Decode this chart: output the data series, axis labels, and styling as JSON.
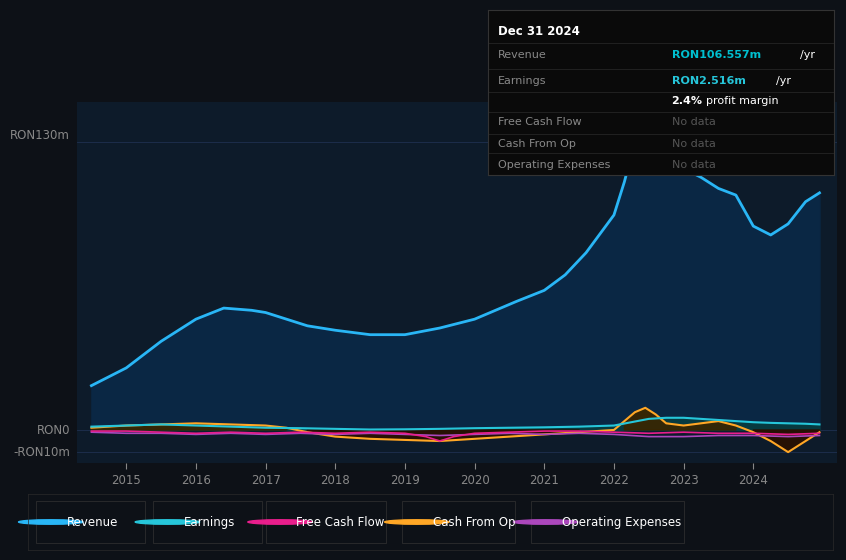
{
  "bg_color": "#0d1117",
  "plot_bg_color": "#0d1b2a",
  "y_label_top": "RON130m",
  "y_label_zero": "RON0",
  "y_label_neg": "-RON10m",
  "x_ticks": [
    2015,
    2016,
    2017,
    2018,
    2019,
    2020,
    2021,
    2022,
    2023,
    2024
  ],
  "ylim": [
    -15,
    148
  ],
  "revenue": {
    "x": [
      2014.5,
      2015.0,
      2015.5,
      2016.0,
      2016.4,
      2016.8,
      2017.0,
      2017.3,
      2017.6,
      2018.0,
      2018.5,
      2019.0,
      2019.5,
      2020.0,
      2020.3,
      2020.6,
      2021.0,
      2021.3,
      2021.6,
      2022.0,
      2022.15,
      2022.3,
      2022.45,
      2022.6,
      2022.75,
      2023.0,
      2023.25,
      2023.5,
      2023.75,
      2024.0,
      2024.25,
      2024.5,
      2024.75,
      2024.95
    ],
    "y": [
      20,
      28,
      40,
      50,
      55,
      54,
      53,
      50,
      47,
      45,
      43,
      43,
      46,
      50,
      54,
      58,
      63,
      70,
      80,
      97,
      112,
      130,
      138,
      133,
      126,
      118,
      114,
      109,
      106,
      92,
      88,
      93,
      103,
      107
    ],
    "color": "#29b6f6",
    "fill_color": "#0a2744",
    "linewidth": 2.0
  },
  "earnings": {
    "x": [
      2014.5,
      2015.0,
      2015.5,
      2016.0,
      2016.5,
      2017.0,
      2017.5,
      2018.0,
      2018.5,
      2019.0,
      2019.5,
      2020.0,
      2020.5,
      2021.0,
      2021.5,
      2022.0,
      2022.25,
      2022.5,
      2022.75,
      2023.0,
      2023.25,
      2023.5,
      2023.75,
      2024.0,
      2024.25,
      2024.5,
      2024.75,
      2024.95
    ],
    "y": [
      1.5,
      2.0,
      2.5,
      2.0,
      1.5,
      1.0,
      0.8,
      0.5,
      0.2,
      0.3,
      0.5,
      0.8,
      1.0,
      1.2,
      1.5,
      2.0,
      3.5,
      5.0,
      5.5,
      5.5,
      5.0,
      4.5,
      4.0,
      3.5,
      3.2,
      3.0,
      2.8,
      2.5
    ],
    "color": "#26c6da",
    "fill_color": "#073d40",
    "linewidth": 1.5
  },
  "free_cash_flow": {
    "x": [
      2014.5,
      2015.0,
      2015.5,
      2016.0,
      2016.5,
      2017.0,
      2017.5,
      2018.0,
      2018.5,
      2019.0,
      2019.3,
      2019.5,
      2019.7,
      2020.0,
      2020.5,
      2021.0,
      2021.5,
      2022.0,
      2022.5,
      2023.0,
      2023.5,
      2024.0,
      2024.5,
      2024.95
    ],
    "y": [
      -0.5,
      -0.5,
      -1.0,
      -1.5,
      -1.0,
      -1.5,
      -1.0,
      -1.5,
      -1.0,
      -1.5,
      -3.0,
      -5.0,
      -3.0,
      -1.5,
      -1.0,
      -0.5,
      -0.5,
      -1.0,
      -1.5,
      -1.0,
      -1.5,
      -1.5,
      -2.0,
      -1.5
    ],
    "color": "#e91e8c",
    "linewidth": 1.2
  },
  "cash_from_op": {
    "x": [
      2014.5,
      2015.0,
      2015.5,
      2016.0,
      2016.5,
      2017.0,
      2017.3,
      2017.6,
      2018.0,
      2018.5,
      2019.0,
      2019.5,
      2020.0,
      2020.5,
      2021.0,
      2021.5,
      2022.0,
      2022.15,
      2022.3,
      2022.45,
      2022.6,
      2022.75,
      2023.0,
      2023.25,
      2023.5,
      2023.75,
      2024.0,
      2024.25,
      2024.5,
      2024.75,
      2024.95
    ],
    "y": [
      1.0,
      2.0,
      2.5,
      3.0,
      2.5,
      2.0,
      1.0,
      -1.0,
      -3.0,
      -4.0,
      -4.5,
      -5.0,
      -4.0,
      -3.0,
      -2.0,
      -1.0,
      0.0,
      4.0,
      8.0,
      10.0,
      7.0,
      3.0,
      2.0,
      3.0,
      4.0,
      2.0,
      -1.0,
      -5.0,
      -10.0,
      -5.0,
      -1.0
    ],
    "color": "#ffa726",
    "fill_color": "#3d2000",
    "linewidth": 1.5
  },
  "op_expenses": {
    "x": [
      2014.5,
      2015.0,
      2015.5,
      2016.0,
      2016.5,
      2017.0,
      2017.5,
      2018.0,
      2018.5,
      2019.0,
      2019.5,
      2020.0,
      2020.5,
      2021.0,
      2021.5,
      2022.0,
      2022.5,
      2023.0,
      2023.5,
      2024.0,
      2024.5,
      2024.95
    ],
    "y": [
      -1.0,
      -1.5,
      -1.5,
      -2.0,
      -1.5,
      -2.0,
      -1.5,
      -2.0,
      -1.5,
      -2.0,
      -2.5,
      -2.0,
      -1.5,
      -2.0,
      -1.5,
      -2.0,
      -3.0,
      -3.0,
      -2.5,
      -2.5,
      -3.0,
      -2.5
    ],
    "color": "#ab47bc",
    "linewidth": 1.2
  },
  "legend": [
    {
      "label": "Revenue",
      "color": "#29b6f6"
    },
    {
      "label": "Earnings",
      "color": "#26c6da"
    },
    {
      "label": "Free Cash Flow",
      "color": "#e91e8c"
    },
    {
      "label": "Cash From Op",
      "color": "#ffa726"
    },
    {
      "label": "Operating Expenses",
      "color": "#ab47bc"
    }
  ],
  "grid_color": "#1e3050",
  "text_color": "#888888",
  "white_color": "#ffffff",
  "cyan_color": "#00bfcf",
  "teal_color": "#26c6da",
  "nodata_color": "#555555",
  "divider_color": "#2a2a2a"
}
